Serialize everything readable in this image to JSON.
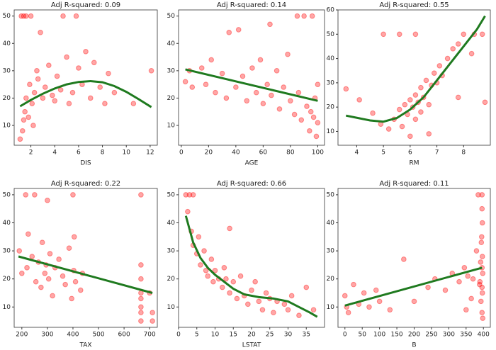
{
  "chart_data": [
    {
      "type": "scatter",
      "title": "Adj R-squared: 0.09",
      "xlabel": "DIS",
      "color": "#ff0000",
      "fit_color": "#1f7a1f",
      "x": [
        1.2,
        1.4,
        1.6,
        2.0,
        1.3,
        1.4,
        1.5,
        1.6,
        1.8,
        1.9,
        2.1,
        2.3,
        2.5,
        2.6,
        2.8,
        3.0,
        3.2,
        3.5,
        3.8,
        4.0,
        4.2,
        4.5,
        5.0,
        5.2,
        5.5,
        6.0,
        6.3,
        6.6,
        7.0,
        7.3,
        7.8,
        8.2,
        8.5,
        9.0,
        10.6,
        12.1,
        5.8,
        4.7,
        1.1,
        2.2
      ],
      "values": [
        50,
        50,
        50,
        50,
        8,
        12,
        15,
        20,
        13,
        25,
        18,
        22,
        30,
        27,
        44,
        20,
        24,
        32,
        21,
        19,
        28,
        23,
        35,
        18,
        22,
        31,
        25,
        37,
        20,
        33,
        24,
        18,
        29,
        22,
        18,
        30,
        50,
        50,
        5,
        10
      ],
      "fit_x": [
        1.1,
        2,
        3,
        4,
        5,
        6,
        7,
        8,
        9,
        10,
        11,
        12.1
      ],
      "fit_values": [
        17,
        19.3,
        21.6,
        23.5,
        25,
        25.9,
        26.2,
        25.8,
        24.4,
        22.3,
        19.7,
        16.7
      ],
      "xlim": [
        0.6,
        12.6
      ],
      "ylim": [
        2.75,
        52.25
      ],
      "xticks": [
        2,
        4,
        6,
        8,
        10,
        12
      ],
      "yticks": [
        10,
        20,
        30,
        40,
        50
      ]
    },
    {
      "type": "scatter",
      "title": "Adj R-squared: 0.14",
      "xlabel": "AGE",
      "color": "#ff0000",
      "fit_color": "#1f7a1f",
      "x": [
        3,
        8,
        15,
        18,
        22,
        25,
        30,
        33,
        35,
        40,
        45,
        48,
        52,
        55,
        58,
        60,
        63,
        66,
        70,
        72,
        75,
        78,
        80,
        83,
        86,
        88,
        90,
        92,
        94,
        95,
        96,
        97,
        98,
        99,
        100,
        100,
        85,
        6,
        42,
        65
      ],
      "values": [
        26,
        24,
        31,
        25,
        34,
        22,
        29,
        20,
        44,
        24,
        28,
        19,
        31,
        22,
        34,
        18,
        25,
        21,
        30,
        16,
        24,
        36,
        19,
        14,
        22,
        12,
        50,
        17,
        8,
        15,
        50,
        13,
        20,
        6,
        11,
        25,
        50,
        30,
        45,
        47
      ],
      "fit_x": [
        3,
        100
      ],
      "fit_values": [
        30.5,
        19
      ],
      "xlim": [
        -2,
        105
      ],
      "ylim": [
        2.75,
        52.25
      ],
      "xticks": [
        0,
        20,
        40,
        60,
        80,
        100
      ],
      "yticks": [
        10,
        20,
        30,
        40,
        50
      ]
    },
    {
      "type": "scatter",
      "title": "Adj R-squared: 0.55",
      "xlabel": "RM",
      "color": "#ff0000",
      "fit_color": "#1f7a1f",
      "x": [
        3.6,
        4.1,
        4.6,
        4.9,
        5.0,
        5.2,
        5.4,
        5.6,
        5.7,
        5.8,
        5.9,
        6.0,
        6.0,
        6.1,
        6.2,
        6.2,
        6.3,
        6.4,
        6.4,
        6.5,
        6.6,
        6.7,
        6.8,
        6.9,
        7.0,
        7.1,
        7.2,
        7.4,
        7.6,
        7.8,
        8.0,
        8.3,
        8.4,
        8.7,
        8.8,
        5.6,
        6.2,
        6.7,
        7.8
      ],
      "values": [
        27.5,
        23,
        17.5,
        13,
        50,
        11,
        15,
        19,
        12,
        21,
        17,
        23,
        8,
        20,
        25,
        15,
        22,
        28,
        18,
        24,
        31,
        21,
        29,
        34,
        30,
        37,
        33,
        40,
        44,
        46,
        50,
        42,
        50,
        50,
        22,
        50,
        50,
        9,
        24
      ],
      "fit_x": [
        3.6,
        4.5,
        5,
        5.5,
        6,
        6.5,
        7,
        7.5,
        8,
        8.5,
        8.8
      ],
      "fit_values": [
        16.5,
        14.5,
        14,
        15.5,
        19,
        24,
        31,
        38,
        45,
        52,
        57.5
      ],
      "xlim": [
        3.3,
        9.0
      ],
      "ylim": [
        4.3,
        60
      ],
      "xticks": [
        4,
        5,
        6,
        7,
        8
      ],
      "yticks": [
        10,
        20,
        30,
        40,
        50,
        60
      ]
    },
    {
      "type": "scatter",
      "title": "Adj R-squared: 0.22",
      "xlabel": "TAX",
      "color": "#ff0000",
      "fit_color": "#1f7a1f",
      "x": [
        190,
        200,
        215,
        220,
        225,
        240,
        250,
        255,
        265,
        275,
        280,
        290,
        295,
        300,
        305,
        310,
        320,
        330,
        345,
        360,
        370,
        385,
        395,
        400,
        403,
        405,
        410,
        430,
        437,
        666,
        666,
        666,
        666,
        666,
        666,
        666,
        666,
        700,
        711,
        711
      ],
      "values": [
        30,
        22,
        50,
        24,
        36,
        28,
        50,
        19,
        26,
        17,
        33,
        22,
        25,
        48,
        20,
        29,
        14,
        24,
        27,
        21,
        18,
        31,
        13,
        50,
        23,
        35,
        19,
        16,
        22,
        50,
        5,
        10,
        15,
        20,
        25,
        13,
        8,
        15,
        8,
        5
      ],
      "fit_x": [
        187,
        711
      ],
      "fit_values": [
        28,
        15
      ],
      "xlim": [
        170,
        730
      ],
      "ylim": [
        2.75,
        52.25
      ],
      "xticks": [
        200,
        300,
        400,
        500,
        600,
        700
      ],
      "yticks": [
        10,
        20,
        30,
        40,
        50
      ]
    },
    {
      "type": "scatter",
      "title": "Adj R-squared: 0.66",
      "xlabel": "LSTAT",
      "color": "#ff0000",
      "fit_color": "#1f7a1f",
      "x": [
        2,
        3,
        4,
        2.5,
        3.5,
        4,
        5,
        5.5,
        6,
        7,
        7.5,
        8,
        9,
        9.5,
        10,
        11,
        12,
        12.5,
        13,
        14,
        15,
        16,
        17,
        18,
        19,
        20,
        21,
        22,
        23,
        24,
        25,
        26,
        27,
        29,
        30,
        31,
        33,
        35,
        37,
        14
      ],
      "values": [
        50,
        50,
        50,
        44,
        37,
        32,
        29,
        35,
        25,
        30,
        23,
        21,
        27,
        19,
        23,
        20,
        17,
        24,
        20,
        15,
        19,
        13,
        21,
        14,
        11,
        16,
        19,
        12,
        9,
        15,
        13,
        8,
        12,
        11,
        9,
        14,
        7,
        17,
        9,
        38
      ],
      "fit_x": [
        2,
        4,
        6,
        8,
        10,
        12,
        15,
        18,
        22,
        26,
        30,
        33,
        36,
        38
      ],
      "fit_values": [
        42.5,
        33,
        27.5,
        24,
        21.5,
        19.5,
        16.5,
        14.5,
        13.5,
        13,
        12,
        10,
        8,
        6.5
      ],
      "xlim": [
        0,
        40
      ],
      "ylim": [
        2.75,
        52.25
      ],
      "xticks": [
        0,
        5,
        10,
        15,
        20,
        25,
        30,
        35
      ],
      "yticks": [
        10,
        20,
        30,
        40,
        50
      ]
    },
    {
      "type": "scatter",
      "title": "Adj R-squared: 0.11",
      "xlabel": "B",
      "color": "#ff0000",
      "fit_color": "#1f7a1f",
      "x": [
        0,
        5,
        10,
        25,
        40,
        55,
        70,
        90,
        100,
        130,
        170,
        200,
        240,
        260,
        290,
        310,
        330,
        345,
        355,
        370,
        380,
        385,
        390,
        393,
        395,
        396,
        396,
        396,
        396,
        397,
        397,
        398,
        398,
        397,
        396,
        394,
        392,
        389,
        365,
        350
      ],
      "values": [
        14,
        10,
        8,
        18,
        11,
        15,
        10,
        16,
        12,
        9,
        27,
        12,
        17,
        20,
        16,
        22,
        19,
        24,
        21,
        20,
        30,
        50,
        19,
        12,
        35,
        50,
        24,
        8,
        17,
        40,
        28,
        6,
        22,
        15,
        45,
        33,
        26,
        18,
        13,
        9
      ],
      "fit_x": [
        0,
        396
      ],
      "fit_values": [
        10.5,
        24
      ],
      "xlim": [
        -20,
        420
      ],
      "ylim": [
        2.75,
        52.25
      ],
      "xticks": [
        0,
        50,
        100,
        150,
        200,
        250,
        300,
        350,
        400
      ],
      "yticks": [
        10,
        20,
        30,
        40,
        50
      ]
    }
  ]
}
